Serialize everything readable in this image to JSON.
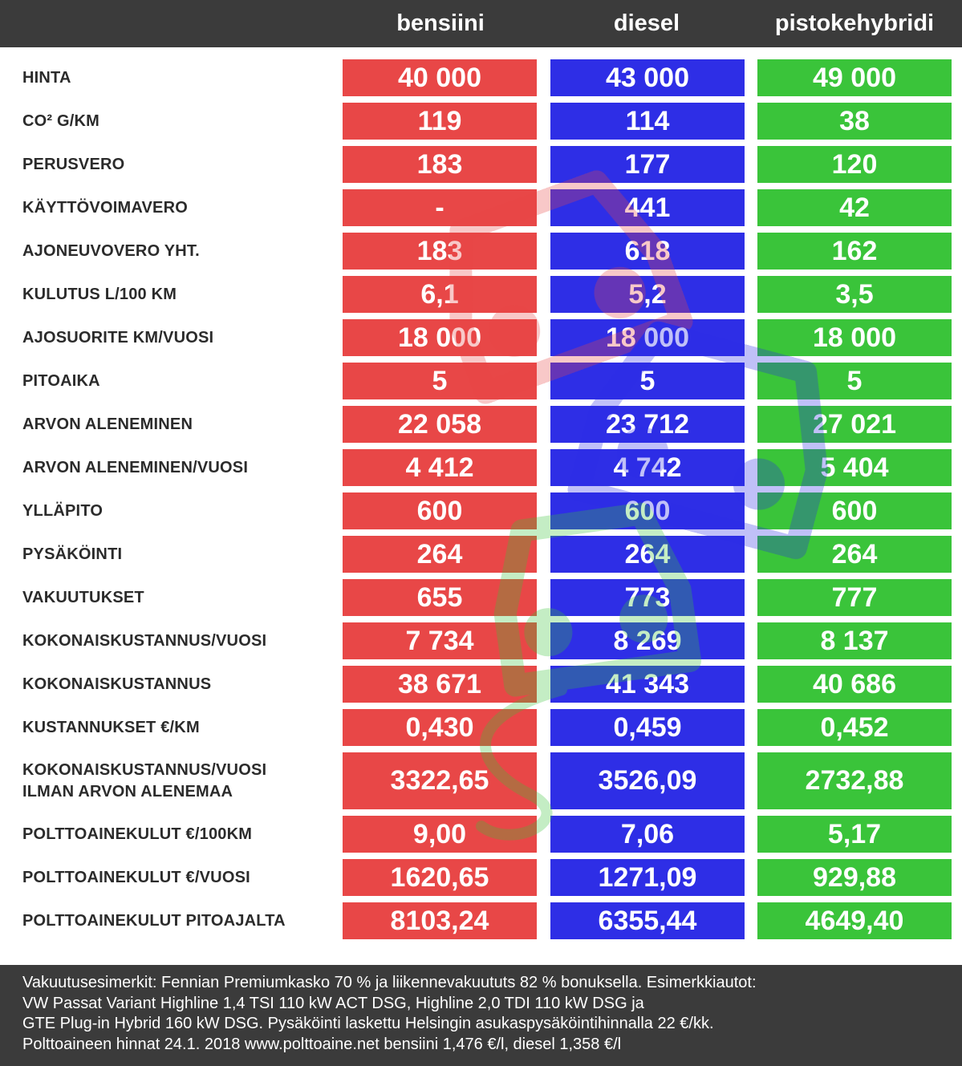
{
  "chart_data": {
    "type": "table",
    "columns": [
      "bensiini",
      "diesel",
      "pistokehybridi"
    ],
    "column_colors": [
      "#e84747",
      "#2e2ee6",
      "#3ac43a"
    ],
    "rows": [
      {
        "label": "HINTA",
        "values": [
          "40 000",
          "43 000",
          "49 000"
        ]
      },
      {
        "label": "CO² G/KM",
        "values": [
          "119",
          "114",
          "38"
        ]
      },
      {
        "label": "PERUSVERO",
        "values": [
          "183",
          "177",
          "120"
        ]
      },
      {
        "label": "KÄYTTÖVOIMAVERO",
        "values": [
          "-",
          "441",
          "42"
        ]
      },
      {
        "label": "AJONEUVOVERO YHT.",
        "values": [
          "183",
          "618",
          "162"
        ]
      },
      {
        "label": "KULUTUS L/100 KM",
        "values": [
          "6,1",
          "5,2",
          "3,5"
        ]
      },
      {
        "label": "AJOSUORITE KM/VUOSI",
        "values": [
          "18 000",
          "18 000",
          "18 000"
        ]
      },
      {
        "label": "PITOAIKA",
        "values": [
          "5",
          "5",
          "5"
        ]
      },
      {
        "label": "ARVON ALENEMINEN",
        "values": [
          "22 058",
          "23 712",
          "27 021"
        ]
      },
      {
        "label": "ARVON ALENEMINEN/VUOSI",
        "values": [
          "4 412",
          "4 742",
          "5 404"
        ]
      },
      {
        "label": "YLLÄPITO",
        "values": [
          "600",
          "600",
          "600"
        ]
      },
      {
        "label": "PYSÄKÖINTI",
        "values": [
          "264",
          "264",
          "264"
        ]
      },
      {
        "label": "VAKUUTUKSET",
        "values": [
          "655",
          "773",
          "777"
        ]
      },
      {
        "label": "KOKONAISKUSTANNUS/VUOSI",
        "values": [
          "7 734",
          "8 269",
          "8 137"
        ]
      },
      {
        "label": "KOKONAISKUSTANNUS",
        "values": [
          "38 671",
          "41 343",
          "40 686"
        ]
      },
      {
        "label": "KUSTANNUKSET €/KM",
        "values": [
          "0,430",
          "0,459",
          "0,452"
        ]
      },
      {
        "label": [
          "KOKONAISKUSTANNUS/VUOSI",
          "ILMAN ARVON ALENEMAA"
        ],
        "values": [
          "3322,65",
          "3526,09",
          "2732,88"
        ]
      },
      {
        "label": "POLTTOAINEKULUT €/100KM",
        "values": [
          "9,00",
          "7,06",
          "5,17"
        ]
      },
      {
        "label": "POLTTOAINEKULUT €/VUOSI",
        "values": [
          "1620,65",
          "1271,09",
          "929,88"
        ]
      },
      {
        "label": "POLTTOAINEKULUT PITOAJALTA",
        "values": [
          "8103,24",
          "6355,44",
          "4649,40"
        ]
      }
    ]
  },
  "footer": {
    "lines": [
      "Vakuutusesimerkit: Fennian Premiumkasko 70 % ja liikennevakuututs 82 % bonuksella. Esimerkkiautot:",
      "VW Passat Variant Highline 1,4 TSI 110 kW ACT DSG, Highline 2,0 TDI 110 kW DSG ja",
      "GTE Plug-in Hybrid 160 kW DSG. Pysäköinti laskettu Helsingin asukaspysäköintihinnalla 22 €/kk.",
      "Polttoaineen hinnat 24.1. 2018 www.polttoaine.net bensiini 1,476 €/l, diesel 1,358 €/l"
    ]
  }
}
